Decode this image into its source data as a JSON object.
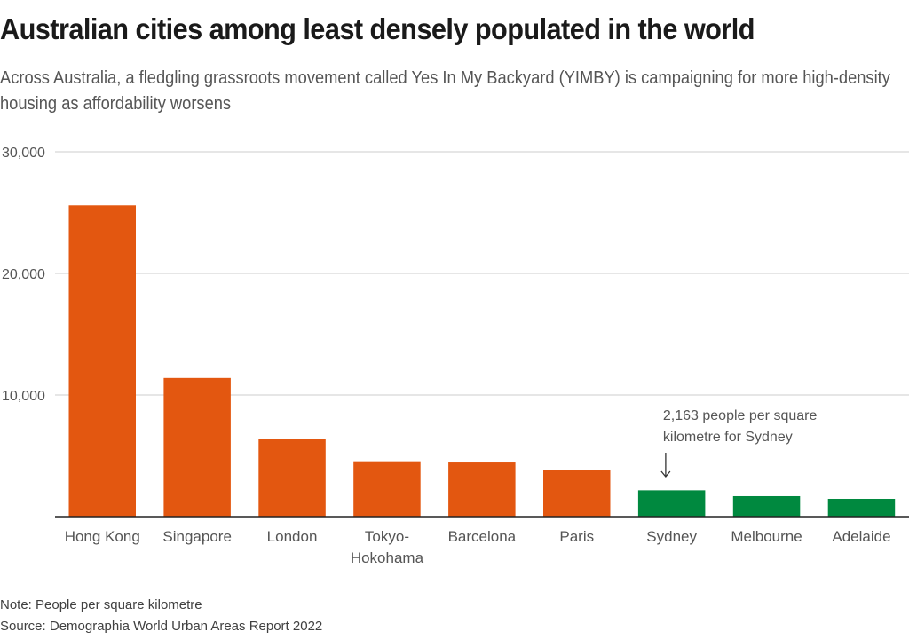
{
  "header": {
    "title": "Australian cities among least densely populated in the world",
    "subtitle": "Across Australia, a fledgling grassroots movement called Yes In My Backyard (YIMBY) is campaigning for more high-density housing as affordability worsens"
  },
  "footer": {
    "note": "Note: People per square kilometre",
    "source": "Source: Demographia World Urban Areas Report 2022"
  },
  "colors": {
    "highlight_world": "#e35710",
    "highlight_australia": "#00893f",
    "grid": "#cccccc",
    "axis": "#222222"
  },
  "chart_data": {
    "type": "bar",
    "title": "Australian cities among least densely populated in the world",
    "xlabel": "",
    "ylabel": "People per square kilometre",
    "ylim": [
      0,
      30000
    ],
    "yticks": [
      10000,
      20000,
      30000
    ],
    "ytick_labels": [
      "10,000",
      "20,000",
      "30,000"
    ],
    "grid": true,
    "categories": [
      "Hong Kong",
      "Singapore",
      "London",
      "Tokyo-Hokohama",
      "Barcelona",
      "Paris",
      "Sydney",
      "Melbourne",
      "Adelaide"
    ],
    "category_label_lines": [
      [
        "Hong Kong"
      ],
      [
        "Singapore"
      ],
      [
        "London"
      ],
      [
        "Tokyo-",
        "Hokohama"
      ],
      [
        "Barcelona"
      ],
      [
        "Paris"
      ],
      [
        "Sydney"
      ],
      [
        "Melbourne"
      ],
      [
        "Adelaide"
      ]
    ],
    "values": [
      25600,
      11400,
      6400,
      4550,
      4450,
      3850,
      2163,
      1680,
      1460
    ],
    "groups": [
      "world",
      "world",
      "world",
      "world",
      "world",
      "world",
      "australia",
      "australia",
      "australia"
    ],
    "annotation": {
      "category": "Sydney",
      "lines": [
        "2,163 people per square",
        "kilometre for Sydney"
      ],
      "arrow": "down-arrow"
    }
  }
}
